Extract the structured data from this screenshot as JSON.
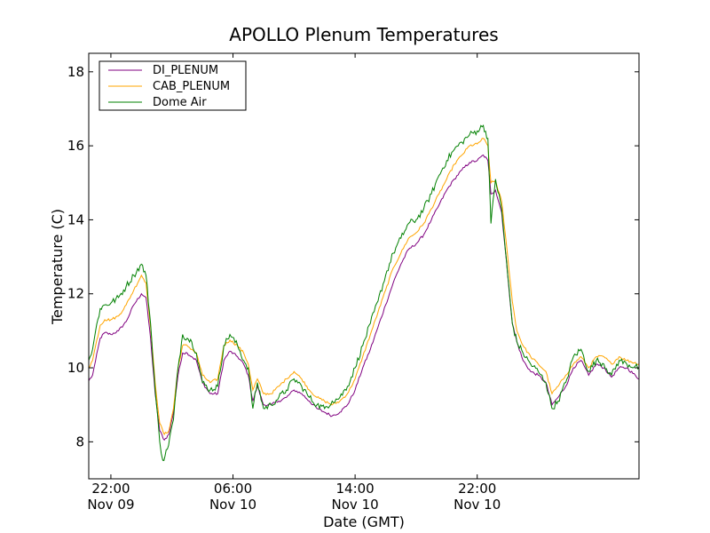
{
  "chart_data": {
    "type": "line",
    "title": "APOLLO Plenum Temperatures",
    "xlabel": "Date (GMT)",
    "ylabel": "Temperature (C)",
    "xlim": [
      -1.45,
      34.6
    ],
    "ylim": [
      7.0,
      18.5
    ],
    "x_unit": "hours since Nov 09 22:00",
    "yticks": [
      8,
      10,
      12,
      14,
      16,
      18
    ],
    "xticks": [
      {
        "value": 0,
        "time": "22:00",
        "date": "Nov 09"
      },
      {
        "value": 8,
        "time": "06:00",
        "date": "Nov 10"
      },
      {
        "value": 16,
        "time": "14:00",
        "date": "Nov 10"
      },
      {
        "value": 24,
        "time": "22:00",
        "date": "Nov 10"
      }
    ],
    "legend_position": "top-left",
    "series": [
      {
        "name": "DI_PLENUM",
        "color": "#800080",
        "points": [
          [
            -1.45,
            9.65
          ],
          [
            -1.2,
            9.8
          ],
          [
            -1.0,
            10.2
          ],
          [
            -0.7,
            10.8
          ],
          [
            -0.4,
            10.95
          ],
          [
            0,
            10.9
          ],
          [
            0.5,
            11.0
          ],
          [
            1.0,
            11.25
          ],
          [
            1.5,
            11.7
          ],
          [
            2.0,
            12.0
          ],
          [
            2.3,
            11.9
          ],
          [
            2.6,
            10.8
          ],
          [
            2.9,
            9.3
          ],
          [
            3.2,
            8.3
          ],
          [
            3.5,
            8.05
          ],
          [
            3.8,
            8.2
          ],
          [
            4.1,
            8.8
          ],
          [
            4.4,
            9.8
          ],
          [
            4.7,
            10.4
          ],
          [
            5.0,
            10.4
          ],
          [
            5.3,
            10.3
          ],
          [
            5.6,
            10.2
          ],
          [
            6.0,
            9.6
          ],
          [
            6.5,
            9.3
          ],
          [
            7.0,
            9.3
          ],
          [
            7.4,
            10.2
          ],
          [
            7.8,
            10.45
          ],
          [
            8.3,
            10.3
          ],
          [
            8.7,
            10.1
          ],
          [
            9.0,
            9.8
          ],
          [
            9.3,
            9.1
          ],
          [
            9.6,
            9.5
          ],
          [
            10.0,
            9.0
          ],
          [
            10.5,
            9.0
          ],
          [
            11.0,
            9.1
          ],
          [
            11.5,
            9.2
          ],
          [
            12.0,
            9.4
          ],
          [
            12.5,
            9.3
          ],
          [
            13.0,
            9.1
          ],
          [
            13.5,
            8.9
          ],
          [
            14.0,
            8.8
          ],
          [
            14.5,
            8.7
          ],
          [
            15.0,
            8.8
          ],
          [
            15.5,
            9.0
          ],
          [
            16.0,
            9.4
          ],
          [
            16.5,
            10.0
          ],
          [
            17.0,
            10.5
          ],
          [
            17.5,
            11.1
          ],
          [
            18.0,
            11.7
          ],
          [
            18.5,
            12.3
          ],
          [
            19.0,
            12.8
          ],
          [
            19.5,
            13.2
          ],
          [
            20.0,
            13.35
          ],
          [
            20.5,
            13.6
          ],
          [
            21.0,
            14.0
          ],
          [
            21.5,
            14.4
          ],
          [
            22.0,
            14.8
          ],
          [
            22.5,
            15.1
          ],
          [
            23.0,
            15.35
          ],
          [
            23.5,
            15.55
          ],
          [
            24.0,
            15.6
          ],
          [
            24.4,
            15.75
          ],
          [
            24.7,
            15.6
          ],
          [
            24.9,
            14.7
          ],
          [
            25.2,
            14.8
          ],
          [
            25.6,
            14.2
          ],
          [
            26.0,
            12.5
          ],
          [
            26.3,
            11.2
          ],
          [
            26.6,
            10.7
          ],
          [
            27.0,
            10.2
          ],
          [
            27.5,
            9.9
          ],
          [
            28.0,
            9.8
          ],
          [
            28.5,
            9.6
          ],
          [
            28.9,
            9.0
          ],
          [
            29.3,
            9.2
          ],
          [
            29.8,
            9.5
          ],
          [
            30.3,
            10.0
          ],
          [
            30.8,
            10.2
          ],
          [
            31.3,
            9.8
          ],
          [
            31.8,
            10.1
          ],
          [
            32.3,
            10.0
          ],
          [
            32.8,
            9.75
          ],
          [
            33.3,
            10.0
          ],
          [
            33.8,
            10.0
          ],
          [
            34.6,
            9.7
          ]
        ]
      },
      {
        "name": "CAB_PLENUM",
        "color": "#ffa500",
        "points": [
          [
            -1.45,
            10.0
          ],
          [
            -1.2,
            10.2
          ],
          [
            -1.0,
            10.6
          ],
          [
            -0.7,
            11.15
          ],
          [
            -0.4,
            11.3
          ],
          [
            0,
            11.3
          ],
          [
            0.5,
            11.4
          ],
          [
            1.0,
            11.7
          ],
          [
            1.5,
            12.1
          ],
          [
            2.0,
            12.5
          ],
          [
            2.3,
            12.3
          ],
          [
            2.6,
            11.1
          ],
          [
            2.9,
            9.6
          ],
          [
            3.2,
            8.5
          ],
          [
            3.5,
            8.2
          ],
          [
            3.8,
            8.3
          ],
          [
            4.1,
            8.9
          ],
          [
            4.4,
            10.0
          ],
          [
            4.7,
            10.6
          ],
          [
            5.0,
            10.6
          ],
          [
            5.3,
            10.5
          ],
          [
            5.6,
            10.4
          ],
          [
            6.0,
            9.8
          ],
          [
            6.5,
            9.6
          ],
          [
            7.0,
            9.7
          ],
          [
            7.4,
            10.6
          ],
          [
            7.8,
            10.75
          ],
          [
            8.3,
            10.6
          ],
          [
            8.7,
            10.4
          ],
          [
            9.0,
            10.1
          ],
          [
            9.3,
            9.4
          ],
          [
            9.6,
            9.7
          ],
          [
            10.0,
            9.3
          ],
          [
            10.5,
            9.3
          ],
          [
            11.0,
            9.5
          ],
          [
            11.5,
            9.7
          ],
          [
            12.0,
            9.9
          ],
          [
            12.5,
            9.7
          ],
          [
            13.0,
            9.4
          ],
          [
            13.5,
            9.2
          ],
          [
            14.0,
            9.1
          ],
          [
            14.5,
            9.0
          ],
          [
            15.0,
            9.1
          ],
          [
            15.5,
            9.3
          ],
          [
            16.0,
            9.7
          ],
          [
            16.5,
            10.3
          ],
          [
            17.0,
            10.9
          ],
          [
            17.5,
            11.5
          ],
          [
            18.0,
            12.1
          ],
          [
            18.5,
            12.7
          ],
          [
            19.0,
            13.1
          ],
          [
            19.5,
            13.5
          ],
          [
            20.0,
            13.65
          ],
          [
            20.5,
            13.9
          ],
          [
            21.0,
            14.3
          ],
          [
            21.5,
            14.7
          ],
          [
            22.0,
            15.1
          ],
          [
            22.5,
            15.5
          ],
          [
            23.0,
            15.75
          ],
          [
            23.5,
            16.0
          ],
          [
            24.0,
            16.05
          ],
          [
            24.4,
            16.2
          ],
          [
            24.7,
            16.0
          ],
          [
            24.9,
            15.0
          ],
          [
            25.2,
            15.05
          ],
          [
            25.6,
            14.5
          ],
          [
            26.0,
            13.0
          ],
          [
            26.3,
            11.8
          ],
          [
            26.6,
            11.0
          ],
          [
            27.0,
            10.6
          ],
          [
            27.5,
            10.3
          ],
          [
            28.0,
            10.1
          ],
          [
            28.5,
            9.9
          ],
          [
            28.9,
            9.3
          ],
          [
            29.3,
            9.5
          ],
          [
            29.8,
            9.8
          ],
          [
            30.3,
            10.1
          ],
          [
            30.8,
            10.3
          ],
          [
            31.3,
            10.0
          ],
          [
            31.8,
            10.3
          ],
          [
            32.3,
            10.3
          ],
          [
            32.8,
            10.1
          ],
          [
            33.3,
            10.3
          ],
          [
            33.8,
            10.2
          ],
          [
            34.6,
            10.1
          ]
        ]
      },
      {
        "name": "Dome Air",
        "color": "#008000",
        "points": [
          [
            -1.45,
            10.2
          ],
          [
            -1.2,
            10.5
          ],
          [
            -1.0,
            11.0
          ],
          [
            -0.7,
            11.6
          ],
          [
            -0.4,
            11.7
          ],
          [
            0,
            11.75
          ],
          [
            0.5,
            11.9
          ],
          [
            1.0,
            12.2
          ],
          [
            1.5,
            12.5
          ],
          [
            2.0,
            12.8
          ],
          [
            2.3,
            12.5
          ],
          [
            2.6,
            11.2
          ],
          [
            2.9,
            9.4
          ],
          [
            3.2,
            8.0
          ],
          [
            3.4,
            7.5
          ],
          [
            3.7,
            7.8
          ],
          [
            4.1,
            8.6
          ],
          [
            4.4,
            10.0
          ],
          [
            4.7,
            10.9
          ],
          [
            5.0,
            10.8
          ],
          [
            5.3,
            10.7
          ],
          [
            5.6,
            10.4
          ],
          [
            6.0,
            9.6
          ],
          [
            6.5,
            9.4
          ],
          [
            7.0,
            9.5
          ],
          [
            7.4,
            10.6
          ],
          [
            7.8,
            10.9
          ],
          [
            8.3,
            10.6
          ],
          [
            8.7,
            10.2
          ],
          [
            9.0,
            10.0
          ],
          [
            9.3,
            8.9
          ],
          [
            9.6,
            9.6
          ],
          [
            10.0,
            8.9
          ],
          [
            10.5,
            9.0
          ],
          [
            11.0,
            9.2
          ],
          [
            11.5,
            9.4
          ],
          [
            12.0,
            9.7
          ],
          [
            12.5,
            9.5
          ],
          [
            13.0,
            9.2
          ],
          [
            13.5,
            9.0
          ],
          [
            14.0,
            8.9
          ],
          [
            14.5,
            9.1
          ],
          [
            15.0,
            9.2
          ],
          [
            15.5,
            9.5
          ],
          [
            16.0,
            10.0
          ],
          [
            16.5,
            10.6
          ],
          [
            17.0,
            11.2
          ],
          [
            17.5,
            11.8
          ],
          [
            18.0,
            12.5
          ],
          [
            18.5,
            13.1
          ],
          [
            19.0,
            13.5
          ],
          [
            19.5,
            13.9
          ],
          [
            20.0,
            14.0
          ],
          [
            20.5,
            14.3
          ],
          [
            21.0,
            14.7
          ],
          [
            21.5,
            15.2
          ],
          [
            22.0,
            15.6
          ],
          [
            22.5,
            15.9
          ],
          [
            23.0,
            16.1
          ],
          [
            23.5,
            16.3
          ],
          [
            24.0,
            16.4
          ],
          [
            24.4,
            16.55
          ],
          [
            24.7,
            16.2
          ],
          [
            24.9,
            13.9
          ],
          [
            25.2,
            15.1
          ],
          [
            25.6,
            14.3
          ],
          [
            26.0,
            12.5
          ],
          [
            26.3,
            11.2
          ],
          [
            26.6,
            10.7
          ],
          [
            27.0,
            10.4
          ],
          [
            27.5,
            10.1
          ],
          [
            28.0,
            9.9
          ],
          [
            28.5,
            9.6
          ],
          [
            28.9,
            8.9
          ],
          [
            29.3,
            9.1
          ],
          [
            29.8,
            9.6
          ],
          [
            30.3,
            10.3
          ],
          [
            30.8,
            10.5
          ],
          [
            31.3,
            9.9
          ],
          [
            31.8,
            10.2
          ],
          [
            32.3,
            10.1
          ],
          [
            32.8,
            9.8
          ],
          [
            33.3,
            10.2
          ],
          [
            33.8,
            10.1
          ],
          [
            34.6,
            10.0
          ]
        ]
      }
    ]
  }
}
